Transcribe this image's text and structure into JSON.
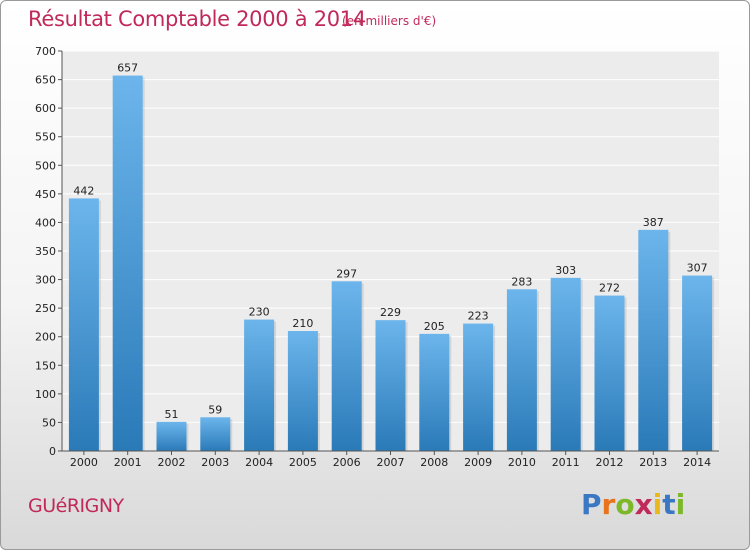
{
  "chart_data": {
    "type": "bar",
    "title": "Résultat Comptable 2000 à 2014",
    "subtitle": "(en milliers d'€)",
    "categories": [
      "2000",
      "2001",
      "2002",
      "2003",
      "2004",
      "2005",
      "2006",
      "2007",
      "2008",
      "2009",
      "2010",
      "2011",
      "2012",
      "2013",
      "2014"
    ],
    "values": [
      442,
      657,
      51,
      59,
      230,
      210,
      297,
      229,
      205,
      223,
      283,
      303,
      272,
      387,
      307
    ],
    "ylim": [
      0,
      700
    ],
    "yticks": [
      0,
      50,
      100,
      150,
      200,
      250,
      300,
      350,
      400,
      450,
      500,
      550,
      600,
      650,
      700
    ],
    "xlabel": "",
    "ylabel": "",
    "grid": true
  },
  "footer": {
    "commune": "GUéRIGNY"
  },
  "logo": {
    "text": "Proxiti",
    "letters": [
      "P",
      "r",
      "o",
      "x",
      "i",
      "t",
      "i"
    ],
    "colors": [
      "#3b78c4",
      "#e8731c",
      "#7db82b",
      "#c0295a",
      "#e8b81c",
      "#3b78c4",
      "#7db82b"
    ]
  },
  "colors": {
    "bar_light": "#6cb5ec",
    "bar_dark": "#2a7ab8",
    "accent": "#c0295a"
  }
}
